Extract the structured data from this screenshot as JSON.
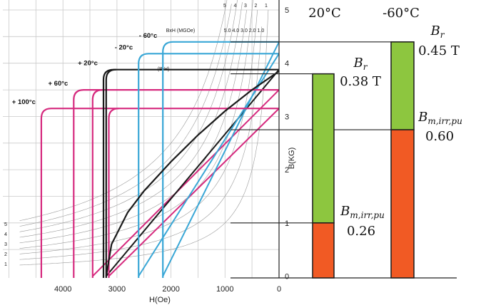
{
  "chart_data": {
    "type": "line",
    "xlabel": "H(Oe)",
    "ylabel": "B(KG)",
    "x_ticks": [
      "4000",
      "3000",
      "2000",
      "1000",
      "0"
    ],
    "x_tick_values": [
      4000,
      3000,
      2000,
      1000,
      0
    ],
    "y_ticks": [
      "0",
      "1",
      "2",
      "3",
      "4",
      "5"
    ],
    "y_tick_values": [
      0,
      1,
      2,
      3,
      4,
      5
    ],
    "xlim": [
      4600,
      0
    ],
    "ylim": [
      -0.05,
      5
    ],
    "x_reversed": true,
    "grid": true,
    "energy_label": "BxH (MGOe)",
    "bh_label": "(B-H)",
    "energy_products_top": [
      "5",
      "4",
      "3",
      "2",
      "1"
    ],
    "energy_products_row": "5.0 4.0 3.0 2.0 1.0",
    "energy_products_left": [
      "5",
      "4",
      "3",
      "2",
      "1"
    ],
    "energy_products": [
      1.0,
      1.5,
      2.0,
      2.5,
      3.0,
      3.5,
      4.0,
      4.5,
      5.0
    ],
    "series": [
      {
        "name": "+ 100°c",
        "color": "#d62a7e",
        "br": 3.15,
        "hcj": 4400,
        "hc": 3150
      },
      {
        "name": "+ 60°c",
        "color": "#d62a7e",
        "br": 3.5,
        "hcj": 3800,
        "hc": 3450
      },
      {
        "name": "+ 20°c",
        "color": "#1a1a1a",
        "br": 3.88,
        "hcj": 3250,
        "hc": 3200
      },
      {
        "name": "- 20°c",
        "color": "#3aa7d6",
        "br": 4.18,
        "hcj": 2600,
        "hc": 2600
      },
      {
        "name": "- 60°c",
        "color": "#3aa7d6",
        "br": 4.4,
        "hcj": 2150,
        "hc": 2150
      }
    ],
    "bh_curve": {
      "name": "(B-H)",
      "color": "#1a1a1a",
      "points": [
        [
          3200,
          0
        ],
        [
          3100,
          0.6
        ],
        [
          2800,
          1.2
        ],
        [
          2500,
          1.6
        ],
        [
          2000,
          2.15
        ],
        [
          1500,
          2.65
        ],
        [
          1000,
          3.1
        ],
        [
          500,
          3.5
        ],
        [
          0,
          3.85
        ]
      ]
    },
    "bars": [
      {
        "temp": "20°C",
        "br_label": "0.38 T",
        "pu_label": "0.26",
        "br_value": 3.8,
        "pu_value": 1.0
      },
      {
        "temp": "-60°C",
        "br_label": "0.45 T",
        "pu_label": "0.60",
        "br_value": 4.4,
        "pu_value": 2.75
      }
    ],
    "colors": {
      "upper_bar": "#8dc63f",
      "lower_bar": "#f15a24"
    }
  }
}
